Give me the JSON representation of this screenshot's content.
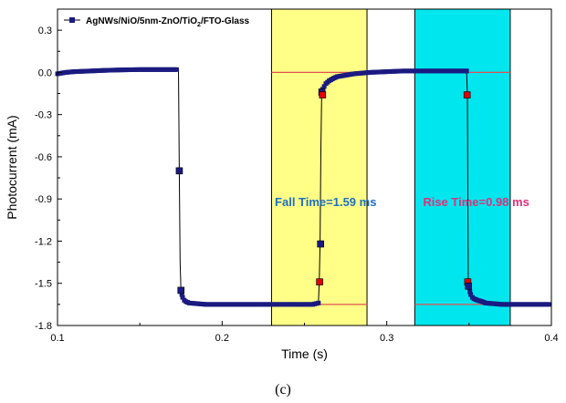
{
  "chart_data": {
    "type": "line",
    "xlabel": "Time (s)",
    "ylabel": "Photocurrent (mA)",
    "xlim": [
      0.1,
      0.4
    ],
    "ylim": [
      -1.8,
      0.45
    ],
    "x_ticks": [
      "0.1",
      "0.2",
      "0.3",
      "0.4"
    ],
    "x_tick_values": [
      0.1,
      0.2,
      0.3,
      0.4
    ],
    "y_ticks": [
      "0.3",
      "0.0",
      "-0.3",
      "-0.6",
      "-0.9",
      "-1.2",
      "-1.5",
      "-1.8"
    ],
    "y_tick_values": [
      0.3,
      0.0,
      -0.3,
      -0.6,
      -0.9,
      -1.2,
      -1.5,
      -1.8
    ],
    "legend": {
      "placement": "top-left",
      "label_parts": [
        "AgNWs/NiO/5nm-ZnO/TiO",
        "2",
        "/FTO-Glass"
      ]
    },
    "series": [
      {
        "name": "AgNWs/NiO/5nm-ZnO/TiO2/FTO-Glass",
        "color": "#1a1a80",
        "x": [
          0.1,
          0.105,
          0.11,
          0.12,
          0.13,
          0.14,
          0.15,
          0.16,
          0.17,
          0.1735,
          0.174,
          0.1745,
          0.175,
          0.1755,
          0.176,
          0.177,
          0.178,
          0.18,
          0.185,
          0.19,
          0.2,
          0.21,
          0.22,
          0.23,
          0.24,
          0.25,
          0.255,
          0.2585,
          0.259,
          0.2595,
          0.26,
          0.2605,
          0.261,
          0.262,
          0.263,
          0.265,
          0.268,
          0.27,
          0.275,
          0.28,
          0.29,
          0.3,
          0.31,
          0.32,
          0.33,
          0.34,
          0.348,
          0.3485,
          0.349,
          0.3495,
          0.35,
          0.3505,
          0.351,
          0.352,
          0.353,
          0.355,
          0.358,
          0.36,
          0.365,
          0.37,
          0.375,
          0.38,
          0.39,
          0.4
        ],
        "y": [
          -0.01,
          0.0,
          0.005,
          0.01,
          0.015,
          0.018,
          0.02,
          0.02,
          0.02,
          0.02,
          -0.7,
          -1.35,
          -1.55,
          -1.58,
          -1.6,
          -1.62,
          -1.63,
          -1.64,
          -1.645,
          -1.65,
          -1.65,
          -1.65,
          -1.65,
          -1.65,
          -1.65,
          -1.65,
          -1.65,
          -1.64,
          -1.49,
          -1.22,
          -0.55,
          -0.14,
          -0.12,
          -0.1,
          -0.08,
          -0.06,
          -0.04,
          -0.03,
          -0.02,
          -0.01,
          0.0,
          0.005,
          0.01,
          0.01,
          0.01,
          0.01,
          0.01,
          0.01,
          -0.16,
          -1.49,
          -1.53,
          -1.56,
          -1.58,
          -1.6,
          -1.61,
          -1.62,
          -1.63,
          -1.64,
          -1.645,
          -1.65,
          -1.65,
          -1.65,
          -1.65,
          -1.65
        ]
      }
    ],
    "markers": [
      {
        "x": 0.174,
        "y": -0.7,
        "color": "#1a1a80"
      },
      {
        "x": 0.175,
        "y": -1.55,
        "color": "#1a1a80"
      },
      {
        "x": 0.2592,
        "y": -1.49,
        "color": "#e00000"
      },
      {
        "x": 0.2598,
        "y": -1.22,
        "color": "#1a1a80"
      },
      {
        "x": 0.2606,
        "y": -0.14,
        "color": "#1a1a80"
      },
      {
        "x": 0.261,
        "y": -0.16,
        "color": "#e00000"
      },
      {
        "x": 0.3488,
        "y": -0.16,
        "color": "#e00000"
      },
      {
        "x": 0.3492,
        "y": -1.49,
        "color": "#e00000"
      },
      {
        "x": 0.3496,
        "y": -1.52,
        "color": "#1a1a80"
      }
    ],
    "shaded_regions": [
      {
        "x0": 0.23,
        "x1": 0.288,
        "color": "#ffff88"
      },
      {
        "x0": 0.317,
        "x1": 0.375,
        "color": "#00e6ee"
      }
    ],
    "reference_lines": [
      {
        "x0": 0.23,
        "x1": 0.288,
        "y": 0.0,
        "color": "#e05050"
      },
      {
        "x0": 0.23,
        "x1": 0.288,
        "y": -1.65,
        "color": "#e05050"
      },
      {
        "x0": 0.317,
        "x1": 0.375,
        "y": 0.0,
        "color": "#e05050"
      },
      {
        "x0": 0.317,
        "x1": 0.375,
        "y": -1.65,
        "color": "#e05050"
      }
    ],
    "annotations": [
      {
        "text": "Fall Time=1.59  ms",
        "x": 0.232,
        "y": -0.95,
        "color": "#1f6fbf"
      },
      {
        "text": "Rise Time=0.98  ms",
        "x": 0.322,
        "y": -0.95,
        "color": "#e0307a"
      }
    ],
    "grid": false,
    "panel_label": "(c)"
  }
}
